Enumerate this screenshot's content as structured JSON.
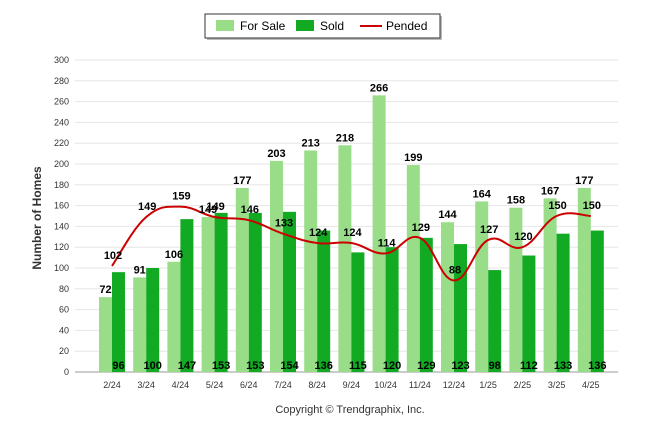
{
  "chart_data": {
    "type": "bar",
    "categories": [
      "2/24",
      "3/24",
      "4/24",
      "5/24",
      "6/24",
      "7/24",
      "8/24",
      "9/24",
      "10/24",
      "11/24",
      "12/24",
      "1/25",
      "2/25",
      "3/25",
      "4/25"
    ],
    "series": [
      {
        "name": "For Sale",
        "kind": "bar",
        "color": "#99dd88",
        "values": [
          72,
          91,
          106,
          149,
          177,
          203,
          213,
          218,
          266,
          199,
          144,
          164,
          158,
          167,
          177
        ]
      },
      {
        "name": "Sold",
        "kind": "bar",
        "color": "#11aa22",
        "values": [
          96,
          100,
          147,
          153,
          153,
          154,
          136,
          115,
          120,
          129,
          123,
          98,
          112,
          133,
          136
        ]
      },
      {
        "name": "Pended",
        "kind": "line",
        "color": "#cc0000",
        "values": [
          102,
          149,
          159,
          149,
          146,
          133,
          124,
          124,
          114,
          129,
          88,
          127,
          120,
          150,
          150
        ]
      }
    ],
    "ylabel": "Number of Homes",
    "xlabel": "",
    "ylim": [
      0,
      300
    ],
    "yticks": [
      0,
      20,
      40,
      60,
      80,
      100,
      120,
      140,
      160,
      180,
      200,
      220,
      240,
      260,
      280,
      300
    ],
    "grid": true,
    "legend_position": "top-center"
  },
  "legend": {
    "items": [
      {
        "label": "For Sale",
        "kind": "bar",
        "color": "#99dd88"
      },
      {
        "label": "Sold",
        "kind": "bar",
        "color": "#11aa22"
      },
      {
        "label": "Pended",
        "kind": "line",
        "color": "#cc0000"
      }
    ]
  },
  "credit": "Copyright © Trendgraphix, Inc."
}
